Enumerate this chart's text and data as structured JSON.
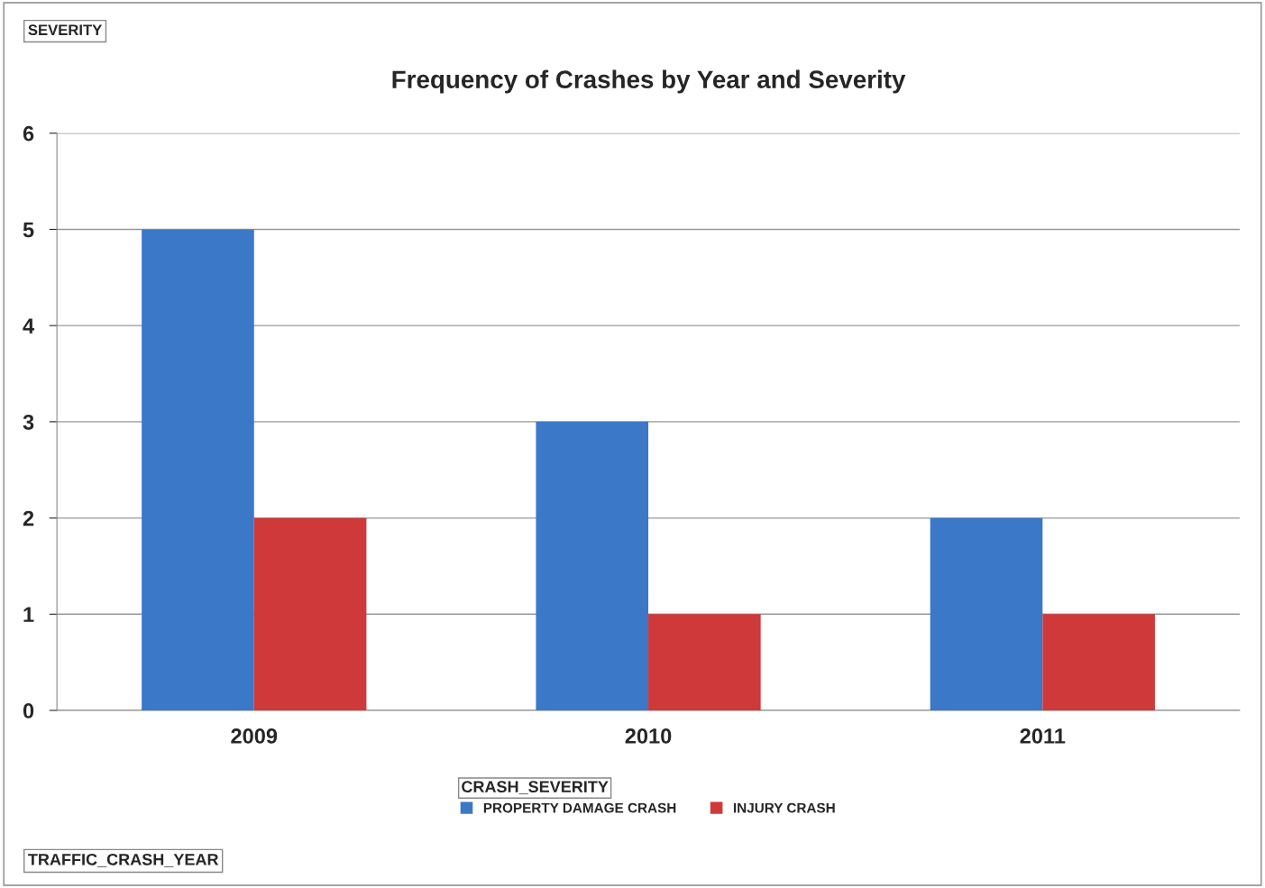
{
  "chart_data": {
    "type": "bar",
    "title": "Frequency of Crashes by Year and Severity",
    "categories": [
      "2009",
      "2010",
      "2011"
    ],
    "series": [
      {
        "name": "PROPERTY DAMAGE CRASH",
        "color": "#3b78c8",
        "values": [
          5,
          3,
          2
        ]
      },
      {
        "name": "INJURY CRASH",
        "color": "#d0393a",
        "values": [
          2,
          1,
          1
        ]
      }
    ],
    "ylim": [
      0,
      6
    ],
    "yticks": [
      0,
      1,
      2,
      3,
      4,
      5,
      6
    ],
    "grid": "y",
    "legend": "bottom",
    "legend_title": "CRASH_SEVERITY",
    "annotations": [
      "SEVERITY",
      "TRAFFIC_CRASH_YEAR"
    ]
  }
}
